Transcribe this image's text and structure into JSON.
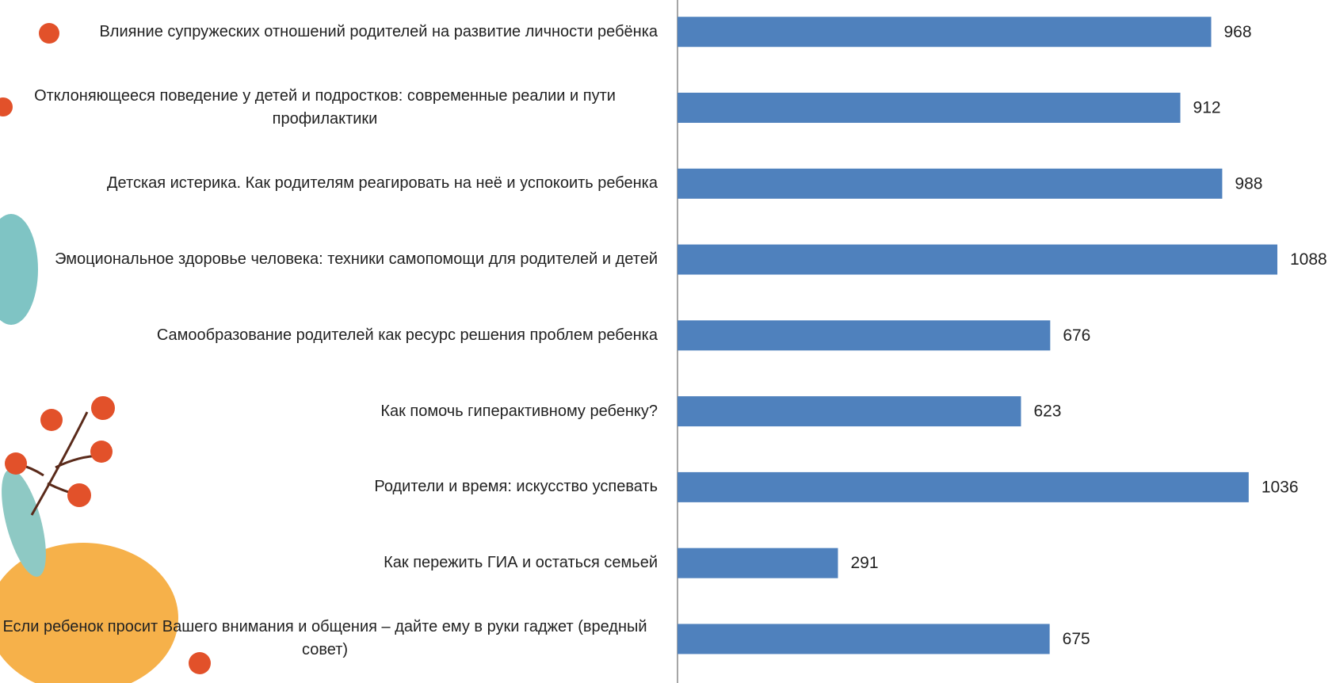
{
  "chart_data": {
    "type": "bar",
    "orientation": "horizontal",
    "color": "#4f81bd",
    "categories": [
      "Влияние супружеских отношений родителей на развитие личности ребёнка",
      "Отклоняющееся поведение у детей и подростков: современные реалии и пути профилактики",
      "Детская истерика. Как родителям реагировать на неё и успокоить ребенка",
      "Эмоциональное здоровье человека: техники самопомощи для родителей и детей",
      "Самообразование родителей как ресурс решения проблем ребенка",
      "Как помочь гиперактивному ребенку?",
      "Родители и время: искусство успевать",
      "Как пережить ГИА и остаться семьей",
      "Если ребенок просит Вашего внимания и общения – дайте ему в руки гаджет (вредный совет)"
    ],
    "values": [
      968,
      912,
      988,
      1088,
      676,
      623,
      1036,
      291,
      675
    ]
  }
}
